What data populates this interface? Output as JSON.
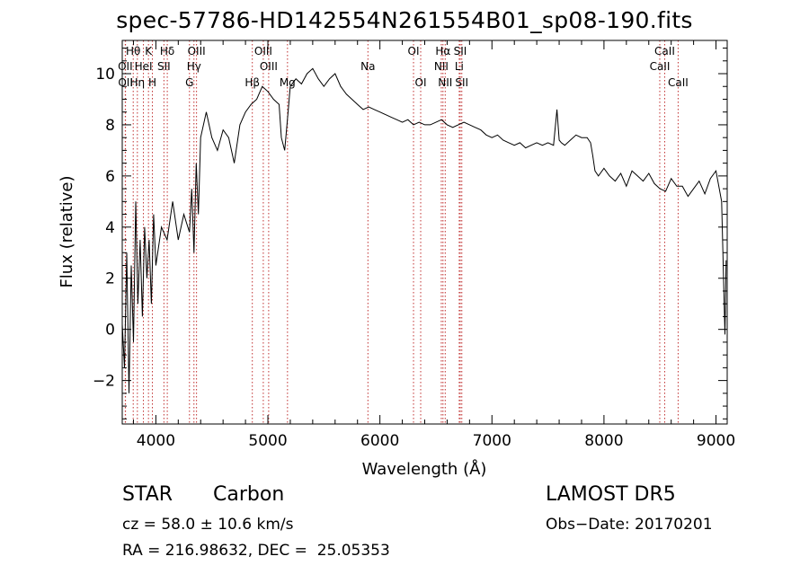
{
  "chart_data": {
    "type": "line",
    "title": "spec-57786-HD142554N261554B01_sp08-190.fits",
    "xlabel": "Wavelength (Å)",
    "ylabel": "Flux (relative)",
    "xlim": [
      3700,
      9100
    ],
    "ylim": [
      -3.7,
      11.3
    ],
    "xticks": [
      4000,
      5000,
      6000,
      7000,
      8000,
      9000
    ],
    "xtick_labels": [
      "4000",
      "5000",
      "6000",
      "7000",
      "8000",
      "9000"
    ],
    "yticks": [
      -2,
      0,
      2,
      4,
      6,
      8,
      10
    ],
    "ytick_labels": [
      "−2",
      "0",
      "2",
      "4",
      "6",
      "8",
      "10"
    ],
    "grid": false,
    "series": [
      {
        "color": "#000000",
        "x": [
          3700,
          3720,
          3740,
          3760,
          3780,
          3800,
          3820,
          3840,
          3860,
          3880,
          3900,
          3920,
          3940,
          3960,
          3980,
          4000,
          4050,
          4100,
          4150,
          4200,
          4250,
          4300,
          4320,
          4340,
          4360,
          4380,
          4400,
          4450,
          4500,
          4550,
          4600,
          4650,
          4700,
          4750,
          4800,
          4850,
          4900,
          4950,
          5000,
          5050,
          5100,
          5120,
          5150,
          5180,
          5200,
          5250,
          5300,
          5350,
          5400,
          5450,
          5500,
          5550,
          5600,
          5650,
          5700,
          5750,
          5800,
          5850,
          5900,
          5950,
          6000,
          6050,
          6100,
          6150,
          6200,
          6250,
          6300,
          6350,
          6400,
          6450,
          6500,
          6550,
          6600,
          6650,
          6700,
          6750,
          6800,
          6850,
          6900,
          6950,
          7000,
          7050,
          7100,
          7150,
          7200,
          7250,
          7300,
          7350,
          7400,
          7450,
          7500,
          7550,
          7580,
          7600,
          7620,
          7650,
          7700,
          7750,
          7800,
          7850,
          7880,
          7900,
          7920,
          7950,
          8000,
          8050,
          8100,
          8150,
          8200,
          8250,
          8300,
          8350,
          8400,
          8450,
          8500,
          8550,
          8600,
          8650,
          8700,
          8750,
          8800,
          8850,
          8900,
          8950,
          9000,
          9050,
          9080,
          9090
        ],
        "y": [
          0.2,
          -1.5,
          3.0,
          -2.5,
          2.5,
          -0.5,
          5.0,
          1.0,
          3.5,
          0.5,
          4.0,
          2.0,
          3.5,
          1.0,
          4.5,
          2.5,
          4.0,
          3.5,
          5.0,
          3.5,
          4.5,
          3.8,
          5.5,
          3.0,
          6.5,
          4.5,
          7.5,
          8.5,
          7.5,
          7.0,
          7.8,
          7.5,
          6.5,
          8.0,
          8.5,
          8.8,
          9.0,
          9.5,
          9.3,
          9.0,
          8.8,
          7.5,
          7.0,
          8.5,
          9.5,
          9.8,
          9.6,
          10.0,
          10.2,
          9.8,
          9.5,
          9.8,
          10.0,
          9.5,
          9.2,
          9.0,
          8.8,
          8.6,
          8.7,
          8.6,
          8.5,
          8.4,
          8.3,
          8.2,
          8.1,
          8.2,
          8.0,
          8.1,
          8.0,
          8.0,
          8.1,
          8.2,
          8.0,
          7.9,
          8.0,
          8.1,
          8.0,
          7.9,
          7.8,
          7.6,
          7.5,
          7.6,
          7.4,
          7.3,
          7.2,
          7.3,
          7.1,
          7.2,
          7.3,
          7.2,
          7.3,
          7.2,
          8.6,
          7.4,
          7.3,
          7.2,
          7.4,
          7.6,
          7.5,
          7.5,
          7.3,
          6.8,
          6.2,
          6.0,
          6.3,
          6.0,
          5.8,
          6.1,
          5.6,
          6.2,
          6.0,
          5.8,
          6.1,
          5.7,
          5.5,
          5.4,
          5.9,
          5.6,
          5.6,
          5.2,
          5.5,
          5.8,
          5.3,
          5.9,
          6.2,
          5.0,
          -0.2,
          2.7
        ]
      }
    ],
    "annotations": [
      {
        "label": "Hθ",
        "x": 3798,
        "row": 1
      },
      {
        "label": "K",
        "x": 3934,
        "row": 1
      },
      {
        "label": "Hδ",
        "x": 4102,
        "row": 1
      },
      {
        "label": "OIII",
        "x": 4363,
        "row": 1
      },
      {
        "label": "OIII",
        "x": 4959,
        "row": 1
      },
      {
        "label": "OI",
        "x": 6300,
        "row": 1
      },
      {
        "label": "Hα",
        "x": 6563,
        "row": 1
      },
      {
        "label": "SII",
        "x": 6717,
        "row": 1
      },
      {
        "label": "CaII",
        "x": 8542,
        "row": 1
      },
      {
        "label": "OII",
        "x": 3727,
        "row": 2
      },
      {
        "label": "HeI",
        "x": 3889,
        "row": 2
      },
      {
        "label": "SII",
        "x": 4072,
        "row": 2
      },
      {
        "label": "Hγ",
        "x": 4340,
        "row": 2
      },
      {
        "label": "OIII",
        "x": 5007,
        "row": 2
      },
      {
        "label": "Na",
        "x": 5893,
        "row": 2
      },
      {
        "label": "NII",
        "x": 6548,
        "row": 2
      },
      {
        "label": "Li",
        "x": 6708,
        "row": 2
      },
      {
        "label": "CaII",
        "x": 8498,
        "row": 2
      },
      {
        "label": "OII",
        "x": 3729,
        "row": 3
      },
      {
        "label": "Hη",
        "x": 3835,
        "row": 3
      },
      {
        "label": "H",
        "x": 3969,
        "row": 3
      },
      {
        "label": "G",
        "x": 4300,
        "row": 3
      },
      {
        "label": "Hβ",
        "x": 4861,
        "row": 3
      },
      {
        "label": "Mg",
        "x": 5175,
        "row": 3
      },
      {
        "label": "OI",
        "x": 6364,
        "row": 3
      },
      {
        "label": "NII",
        "x": 6583,
        "row": 3
      },
      {
        "label": "SII",
        "x": 6731,
        "row": 3
      },
      {
        "label": "CaII",
        "x": 8662,
        "row": 3
      }
    ],
    "line_markers": [
      3727,
      3729,
      3798,
      3835,
      3889,
      3934,
      3969,
      4072,
      4102,
      4300,
      4340,
      4363,
      4861,
      4959,
      5007,
      5175,
      5893,
      6300,
      6364,
      6548,
      6563,
      6583,
      6708,
      6717,
      6731,
      8498,
      8542,
      8662
    ],
    "marker_color": "#c03030"
  },
  "info": {
    "class_label": "STAR",
    "subclass_label": "Carbon",
    "survey_label": "LAMOST DR5",
    "velocity_text": "cz = 58.0 ± 10.6 km/s",
    "obsdate_text": "Obs−Date: 20170201",
    "coords_text": "RA = 216.98632, DEC =  25.05353"
  }
}
